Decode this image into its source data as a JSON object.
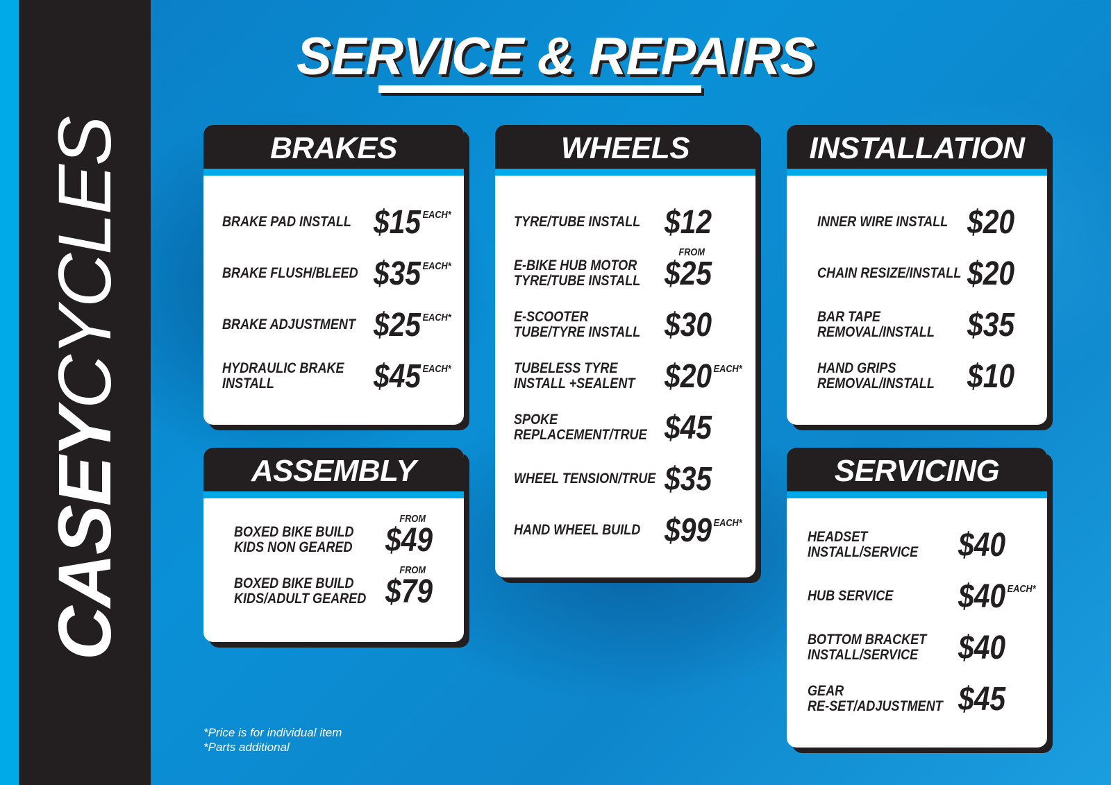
{
  "brand": {
    "name_bold": "CASEY",
    "name_outline": "CYCLES"
  },
  "title": "SERVICE & REPAIRS",
  "colors": {
    "accent": "#00a9e8",
    "dark": "#231f20",
    "background": "#0a90d6"
  },
  "sections": {
    "brakes": {
      "title": "BRAKES",
      "items": [
        {
          "label": "BRAKE PAD INSTALL",
          "price": "$15",
          "from": "",
          "each": "EACH*"
        },
        {
          "label": "BRAKE FLUSH/BLEED",
          "price": "$35",
          "from": "",
          "each": "EACH*"
        },
        {
          "label": "BRAKE ADJUSTMENT",
          "price": "$25",
          "from": "",
          "each": "EACH*"
        },
        {
          "label": "HYDRAULIC BRAKE\nINSTALL",
          "price": "$45",
          "from": "",
          "each": "EACH*"
        }
      ]
    },
    "wheels": {
      "title": "WHEELS",
      "items": [
        {
          "label": "TYRE/TUBE INSTALL",
          "price": "$12",
          "from": "",
          "each": ""
        },
        {
          "label": "E-BIKE HUB MOTOR\nTYRE/TUBE INSTALL",
          "price": "$25",
          "from": "FROM",
          "each": ""
        },
        {
          "label": "E-SCOOTER\nTUBE/TYRE INSTALL",
          "price": "$30",
          "from": "",
          "each": ""
        },
        {
          "label": "TUBELESS TYRE\nINSTALL +SEALENT",
          "price": "$20",
          "from": "",
          "each": "EACH*"
        },
        {
          "label": "SPOKE\nREPLACEMENT/TRUE",
          "price": "$45",
          "from": "",
          "each": ""
        },
        {
          "label": "WHEEL TENSION/TRUE",
          "price": "$35",
          "from": "",
          "each": ""
        },
        {
          "label": "HAND WHEEL BUILD",
          "price": "$99",
          "from": "",
          "each": "EACH*"
        }
      ]
    },
    "installation": {
      "title": "INSTALLATION",
      "items": [
        {
          "label": "INNER WIRE INSTALL",
          "price": "$20",
          "from": "",
          "each": ""
        },
        {
          "label": "CHAIN RESIZE/INSTALL",
          "price": "$20",
          "from": "",
          "each": ""
        },
        {
          "label": "BAR TAPE\nREMOVAL/INSTALL",
          "price": "$35",
          "from": "",
          "each": ""
        },
        {
          "label": "HAND GRIPS\nREMOVAL/INSTALL",
          "price": "$10",
          "from": "",
          "each": ""
        }
      ]
    },
    "assembly": {
      "title": "ASSEMBLY",
      "items": [
        {
          "label": "BOXED BIKE BUILD\nKIDS NON GEARED",
          "price": "$49",
          "from": "FROM",
          "each": ""
        },
        {
          "label": "BOXED BIKE BUILD\nKIDS/ADULT GEARED",
          "price": "$79",
          "from": "FROM",
          "each": ""
        }
      ]
    },
    "servicing": {
      "title": "SERVICING",
      "items": [
        {
          "label": "HEADSET\nINSTALL/SERVICE",
          "price": "$40",
          "from": "",
          "each": ""
        },
        {
          "label": "HUB SERVICE",
          "price": "$40",
          "from": "",
          "each": "EACH*"
        },
        {
          "label": "BOTTOM BRACKET\nINSTALL/SERVICE",
          "price": "$40",
          "from": "",
          "each": ""
        },
        {
          "label": "GEAR\nRE-SET/ADJUSTMENT",
          "price": "$45",
          "from": "",
          "each": ""
        }
      ]
    }
  },
  "footnotes": [
    "*Price is for individual item",
    "*Parts additional"
  ]
}
